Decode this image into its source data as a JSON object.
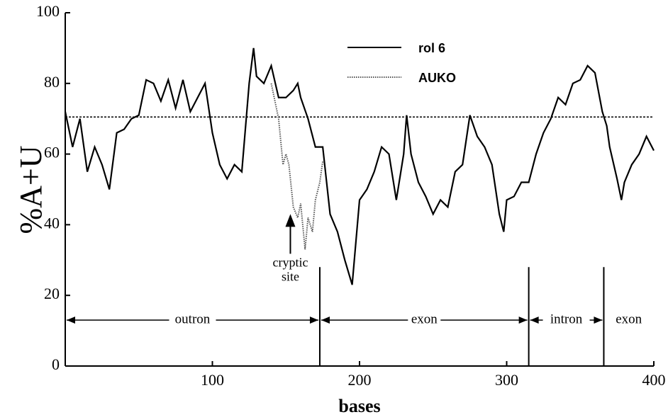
{
  "chart_data": {
    "type": "line",
    "ylabel": "%A+U",
    "xlabel": "bases",
    "xlim": [
      0,
      400
    ],
    "xticks": [
      100,
      200,
      300,
      400
    ],
    "ylim": [
      0,
      100
    ],
    "yticks": [
      0,
      20,
      40,
      60,
      80,
      100
    ],
    "legend": "top",
    "series": [
      {
        "name": "rol 6",
        "color": "#000000",
        "style": "solid",
        "x": [
          0,
          5,
          10,
          15,
          20,
          25,
          30,
          35,
          40,
          45,
          50,
          55,
          60,
          65,
          70,
          75,
          80,
          85,
          90,
          95,
          100,
          105,
          110,
          115,
          120,
          125,
          128,
          130,
          135,
          140,
          145,
          150,
          155,
          158,
          160,
          165,
          170,
          175,
          180,
          185,
          190,
          195,
          200,
          205,
          210,
          215,
          220,
          225,
          230,
          232,
          235,
          240,
          245,
          250,
          255,
          260,
          265,
          270,
          275,
          280,
          285,
          290,
          295,
          298,
          300,
          305,
          310,
          315,
          320,
          325,
          330,
          335,
          340,
          345,
          350,
          355,
          360,
          365,
          368,
          370,
          375,
          378,
          380,
          385,
          390,
          395,
          400
        ],
        "values": [
          72,
          62,
          70,
          55,
          62,
          57,
          50,
          66,
          67,
          70,
          71,
          81,
          80,
          75,
          81,
          73,
          81,
          72,
          76,
          80,
          66,
          57,
          53,
          57,
          55,
          80,
          90,
          82,
          80,
          85,
          76,
          76,
          78,
          80,
          76,
          70,
          62,
          62,
          43,
          38,
          30,
          23,
          47,
          50,
          55,
          62,
          60,
          47,
          60,
          71,
          60,
          52,
          48,
          43,
          47,
          45,
          55,
          57,
          71,
          65,
          62,
          57,
          43,
          38,
          47,
          48,
          52,
          52,
          60,
          66,
          70,
          76,
          74,
          80,
          81,
          85,
          83,
          72,
          68,
          62,
          53,
          47,
          52,
          57,
          60,
          65,
          61
        ]
      },
      {
        "name": "AUKO",
        "color": "#555555",
        "style": "dotted",
        "x": [
          140,
          145,
          148,
          150,
          152,
          155,
          158,
          160,
          163,
          165,
          168,
          170,
          173,
          175
        ],
        "values": [
          80,
          70,
          57,
          60,
          57,
          45,
          42,
          46,
          33,
          42,
          38,
          47,
          52,
          58
        ]
      }
    ],
    "reference_y": 70.5,
    "boundaries": [
      173,
      315,
      366
    ],
    "regions": [
      {
        "label": "outron",
        "start": 0,
        "end": 173
      },
      {
        "label": "exon",
        "start": 173,
        "end": 315
      },
      {
        "label": "intron",
        "start": 315,
        "end": 366
      },
      {
        "label": "exon",
        "start": 366,
        "end": 400
      }
    ],
    "annotation": {
      "lines": [
        "cryptic",
        "site"
      ],
      "x": 153,
      "y": 43
    }
  }
}
